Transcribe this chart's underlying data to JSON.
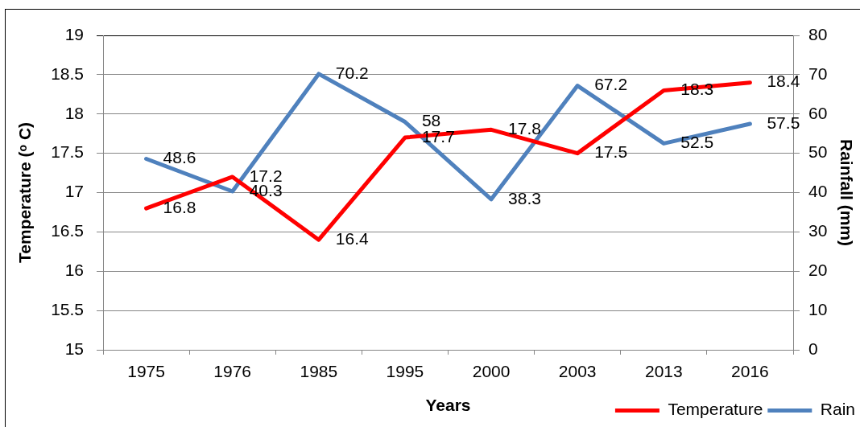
{
  "chart_data": {
    "type": "line",
    "xlabel": "Years",
    "ylabel": "Temperature (ᵒ C)",
    "y2label": "Rainfall (mm)",
    "categories": [
      "1975",
      "1976",
      "1985",
      "1995",
      "2000",
      "2003",
      "2013",
      "2016"
    ],
    "series": [
      {
        "name": "Temperature",
        "color": "#ff0000",
        "values": [
          16.8,
          17.2,
          16.4,
          17.7,
          17.8,
          17.5,
          18.3,
          18.4
        ]
      },
      {
        "name": "Rain",
        "color": "#4f81bd",
        "values": [
          48.6,
          40.3,
          70.2,
          58,
          38.3,
          67.2,
          52.5,
          57.5
        ],
        "axis": "y2"
      }
    ],
    "ylim": [
      15,
      19
    ],
    "yticks": [
      15,
      15.5,
      16,
      16.5,
      17,
      17.5,
      18,
      18.5,
      19
    ],
    "y2lim": [
      0,
      80
    ],
    "y2ticks": [
      0,
      10,
      20,
      30,
      40,
      50,
      60,
      70,
      80
    ],
    "grid": "y",
    "legend": "bottom right",
    "data_labels": true,
    "marker": "none"
  }
}
